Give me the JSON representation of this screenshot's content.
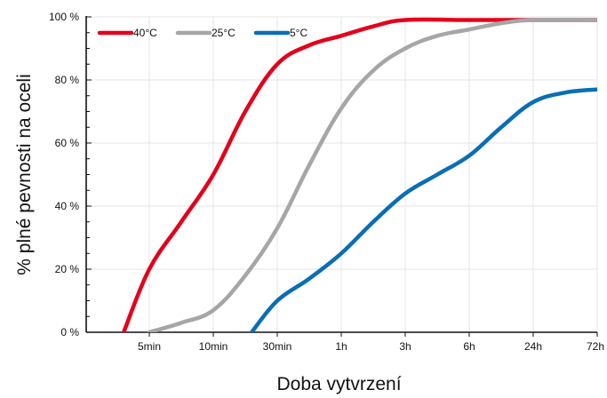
{
  "chart_data": {
    "type": "line",
    "xlabel": "Doba vytvrzení",
    "ylabel": "% plné pevnosti na oceli",
    "categories": [
      "5min",
      "10min",
      "30min",
      "1h",
      "3h",
      "6h",
      "24h",
      "72h"
    ],
    "y_ticks": [
      "0 %",
      "20 %",
      "40 %",
      "60 %",
      "80 %",
      "100 %"
    ],
    "ylim": [
      0,
      100
    ],
    "grid": true,
    "legend_position": "top-left",
    "series": [
      {
        "name": "40°C",
        "color": "#e3001b",
        "points": [
          [
            -0.4,
            0
          ],
          [
            0,
            20
          ],
          [
            0.5,
            35
          ],
          [
            1,
            50
          ],
          [
            1.5,
            70
          ],
          [
            2,
            85
          ],
          [
            2.5,
            91
          ],
          [
            3,
            94
          ],
          [
            3.5,
            97
          ],
          [
            4,
            99
          ],
          [
            5,
            99
          ],
          [
            6,
            99
          ],
          [
            7,
            99
          ]
        ]
      },
      {
        "name": "25°C",
        "color": "#a6a6a6",
        "points": [
          [
            0,
            0
          ],
          [
            0.5,
            3
          ],
          [
            1,
            7
          ],
          [
            1.5,
            18
          ],
          [
            2,
            33
          ],
          [
            2.5,
            53
          ],
          [
            3,
            71
          ],
          [
            3.5,
            83
          ],
          [
            4,
            90
          ],
          [
            4.5,
            94
          ],
          [
            5,
            96
          ],
          [
            5.5,
            98
          ],
          [
            6,
            99
          ],
          [
            7,
            99
          ]
        ]
      },
      {
        "name": "5°C",
        "color": "#0a6eb4",
        "points": [
          [
            1.6,
            0
          ],
          [
            2,
            10
          ],
          [
            2.5,
            17
          ],
          [
            3,
            25
          ],
          [
            3.5,
            35
          ],
          [
            4,
            44
          ],
          [
            4.5,
            50
          ],
          [
            5,
            56
          ],
          [
            5.5,
            65
          ],
          [
            6,
            73
          ],
          [
            6.5,
            76
          ],
          [
            7,
            77
          ]
        ]
      }
    ]
  }
}
